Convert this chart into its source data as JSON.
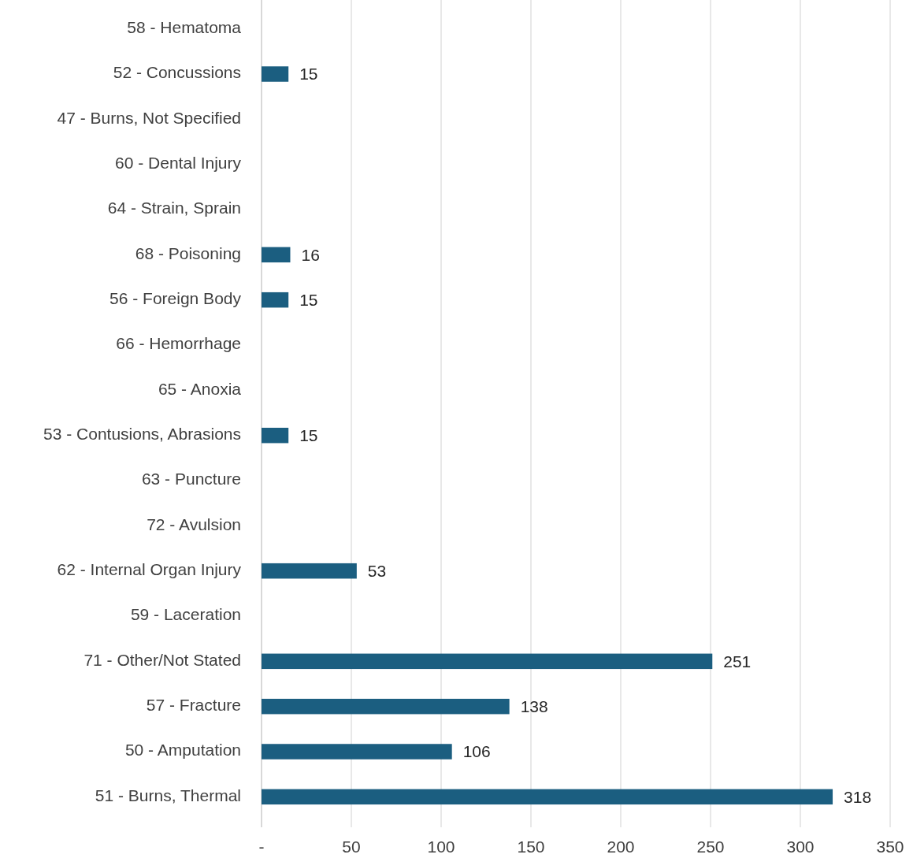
{
  "chart_data": {
    "type": "bar",
    "orientation": "horizontal",
    "categories": [
      "58 - Hematoma",
      "52 - Concussions",
      "47 - Burns, Not Specified",
      "60 - Dental Injury",
      "64 - Strain, Sprain",
      "68 - Poisoning",
      "56 - Foreign Body",
      "66 - Hemorrhage",
      "65 - Anoxia",
      "53 - Contusions, Abrasions",
      "63 - Puncture",
      "72 - Avulsion",
      "62 - Internal Organ Injury",
      "59 - Laceration",
      "71 - Other/Not Stated",
      "57 - Fracture",
      "50 - Amputation",
      "51 - Burns, Thermal"
    ],
    "values": [
      null,
      15,
      null,
      null,
      null,
      16,
      15,
      null,
      null,
      15,
      null,
      null,
      53,
      null,
      251,
      138,
      106,
      318
    ],
    "color": "#1b5e80",
    "xlim": [
      0,
      350
    ],
    "xticks": [
      {
        "value": 0,
        "label": "-"
      },
      50,
      100,
      150,
      200,
      250,
      300,
      350
    ],
    "grid": "x",
    "data_labels": true
  }
}
